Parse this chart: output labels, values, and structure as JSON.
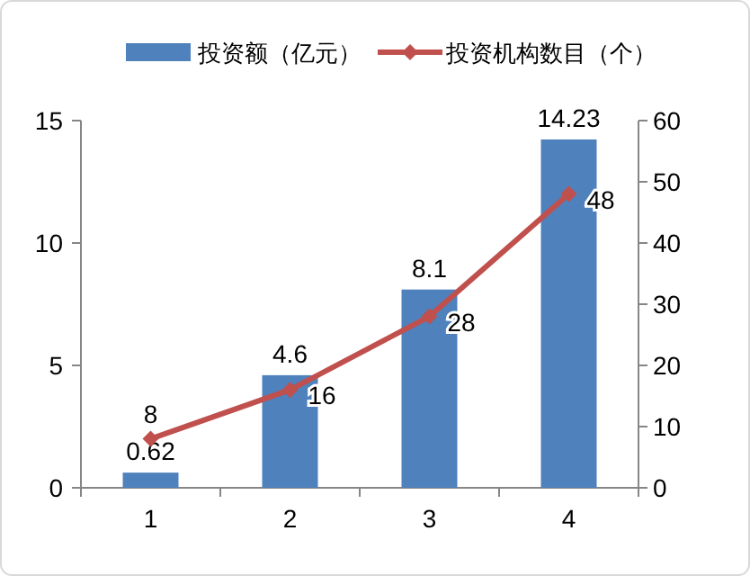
{
  "chart_data": {
    "type": "bar",
    "categories": [
      "1",
      "2",
      "3",
      "4"
    ],
    "series": [
      {
        "name": "投资额（亿元）",
        "color": "#4f81bd",
        "values": [
          0.62,
          4.6,
          8.1,
          14.23
        ]
      },
      {
        "name": "投资机构数目（个）",
        "type": "line",
        "axis": "y2",
        "color": "#c0504d",
        "values": [
          8,
          16,
          28,
          48
        ]
      }
    ],
    "ylim": [
      0,
      15
    ],
    "yticks": [
      0,
      5,
      10,
      15
    ],
    "y2lim": [
      0,
      60
    ],
    "y2ticks": [
      0,
      10,
      20,
      30,
      40,
      50,
      60
    ],
    "marker": "diamond",
    "line_style": "solid",
    "legend": "top",
    "grid": false,
    "data_labels": true
  }
}
